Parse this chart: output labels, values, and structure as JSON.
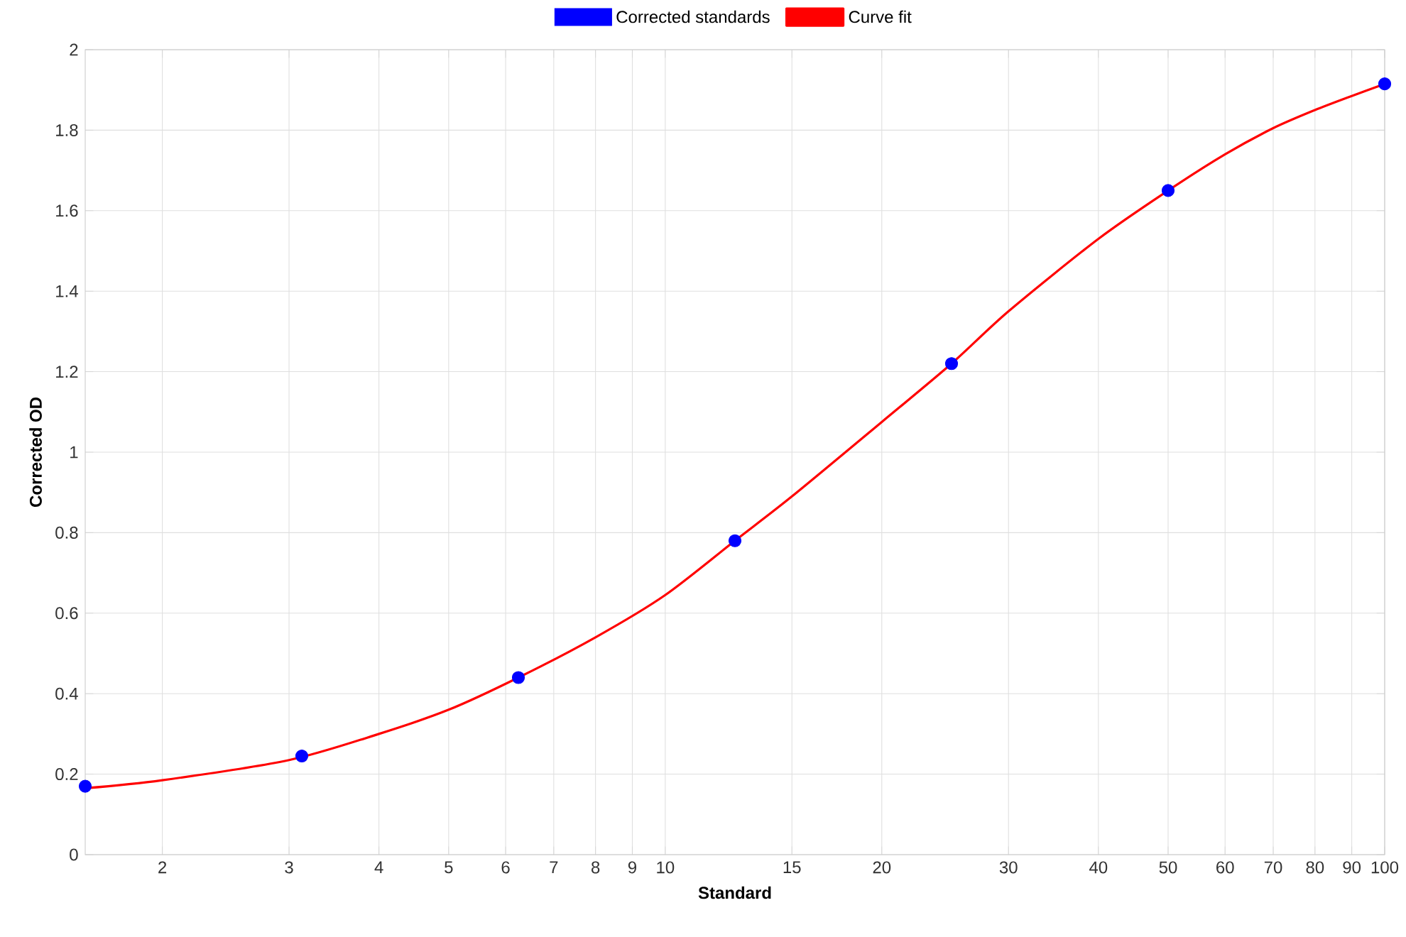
{
  "chart_data": {
    "type": "line",
    "xlabel": "Standard",
    "ylabel": "Corrected OD",
    "log": "x",
    "grid": true,
    "legend": "top",
    "xlim": [
      1.5625,
      100
    ],
    "ylim": [
      0,
      2
    ],
    "xticks": [
      2,
      3,
      4,
      5,
      6,
      7,
      8,
      9,
      10,
      15,
      20,
      30,
      40,
      50,
      60,
      70,
      80,
      90,
      100
    ],
    "yticks": [
      0,
      0.2,
      0.4,
      0.6,
      0.8,
      1,
      1.2,
      1.4,
      1.6,
      1.8,
      2
    ],
    "series": [
      {
        "name": "Corrected standards",
        "type": "scatter",
        "marker": "circle",
        "color": "#0000ff",
        "x": [
          1.5625,
          3.125,
          6.25,
          12.5,
          25,
          50,
          100
        ],
        "values": [
          0.17,
          0.245,
          0.44,
          0.78,
          1.22,
          1.65,
          1.915
        ]
      },
      {
        "name": "Curve fit",
        "marker": "none",
        "line_style": "solid",
        "color": "#ff0000",
        "x": [
          1.5625,
          2,
          3,
          4,
          5,
          6.25,
          8,
          10,
          12.5,
          15,
          20,
          25,
          30,
          40,
          50,
          60,
          70,
          80,
          90,
          100
        ],
        "values": [
          0.165,
          0.185,
          0.235,
          0.3,
          0.36,
          0.44,
          0.54,
          0.645,
          0.78,
          0.89,
          1.075,
          1.22,
          1.35,
          1.53,
          1.65,
          1.74,
          1.805,
          1.85,
          1.885,
          1.915
        ]
      }
    ]
  }
}
